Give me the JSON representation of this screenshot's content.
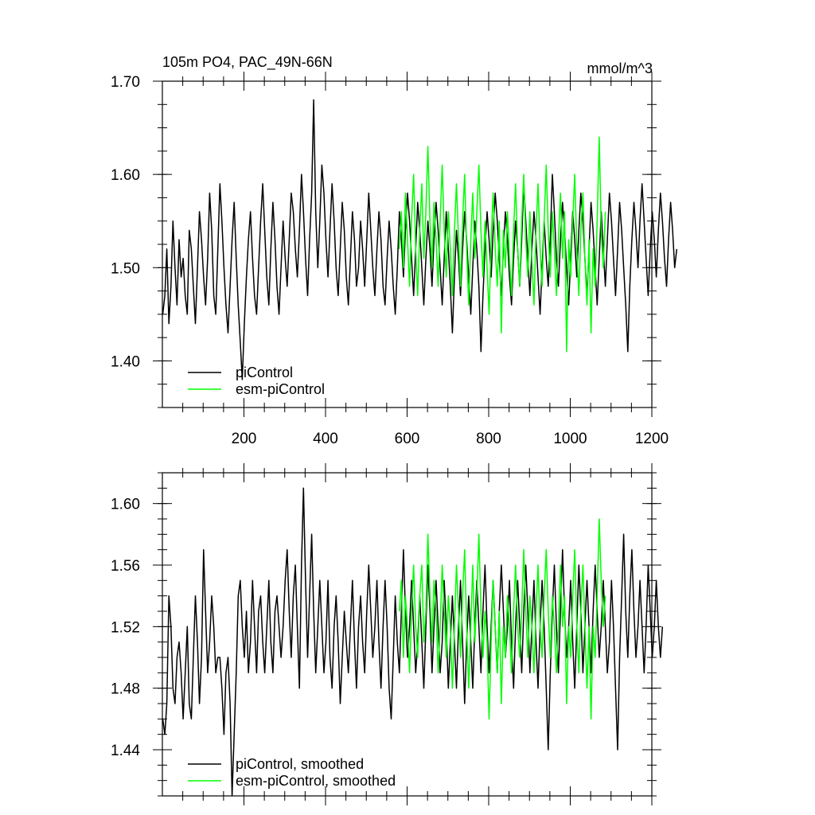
{
  "chart_data": [
    {
      "type": "line",
      "title": "105m PO4, PAC_49N-66N",
      "units": "mmol/m^3",
      "xlim": [
        0,
        1200
      ],
      "ylim": [
        1.35,
        1.7
      ],
      "x_ticks": [
        200,
        400,
        600,
        800,
        1000,
        1200
      ],
      "y_ticks": [
        "1.40",
        "1.50",
        "1.60",
        "1.70"
      ],
      "grid": false,
      "legend_position": "bottom-left",
      "series": [
        {
          "name": "piControl",
          "color": "#000000",
          "x_start": 1,
          "x_step": 5,
          "values": [
            1.45,
            1.47,
            1.52,
            1.44,
            1.48,
            1.55,
            1.5,
            1.46,
            1.53,
            1.49,
            1.51,
            1.47,
            1.45,
            1.54,
            1.52,
            1.48,
            1.44,
            1.5,
            1.56,
            1.53,
            1.49,
            1.46,
            1.51,
            1.58,
            1.54,
            1.47,
            1.45,
            1.52,
            1.59,
            1.55,
            1.5,
            1.46,
            1.43,
            1.48,
            1.53,
            1.57,
            1.51,
            1.46,
            1.42,
            1.38,
            1.44,
            1.49,
            1.53,
            1.56,
            1.51,
            1.47,
            1.45,
            1.5,
            1.55,
            1.59,
            1.54,
            1.49,
            1.46,
            1.52,
            1.57,
            1.53,
            1.48,
            1.45,
            1.5,
            1.55,
            1.51,
            1.48,
            1.53,
            1.58,
            1.56,
            1.52,
            1.49,
            1.54,
            1.6,
            1.56,
            1.51,
            1.47,
            1.53,
            1.58,
            1.68,
            1.56,
            1.5,
            1.55,
            1.61,
            1.58,
            1.53,
            1.49,
            1.54,
            1.59,
            1.55,
            1.5,
            1.47,
            1.52,
            1.57,
            1.54,
            1.49,
            1.46,
            1.51,
            1.56,
            1.53,
            1.48,
            1.5,
            1.55,
            1.52,
            1.48,
            1.53,
            1.58,
            1.54,
            1.5,
            1.47,
            1.52,
            1.56,
            1.53,
            1.48,
            1.46,
            1.51,
            1.55,
            1.52,
            1.48,
            1.45,
            1.5,
            1.56,
            1.53,
            1.49,
            1.54,
            1.58,
            1.55,
            1.51,
            1.47,
            1.52,
            1.57,
            1.54,
            1.5,
            1.46,
            1.51,
            1.55,
            1.52,
            1.48,
            1.53,
            1.57,
            1.54,
            1.5,
            1.46,
            1.51,
            1.56,
            1.52,
            1.48,
            1.43,
            1.49,
            1.54,
            1.51,
            1.47,
            1.52,
            1.56,
            1.53,
            1.49,
            1.45,
            1.5,
            1.55,
            1.52,
            1.48,
            1.41,
            1.47,
            1.52,
            1.56,
            1.53,
            1.49,
            1.54,
            1.58,
            1.55,
            1.51,
            1.47,
            1.52,
            1.56,
            1.53,
            1.49,
            1.46,
            1.51,
            1.55,
            1.52,
            1.48,
            1.53,
            1.59,
            1.55,
            1.51,
            1.47,
            1.52,
            1.56,
            1.53,
            1.49,
            1.45,
            1.5,
            1.55,
            1.51,
            1.48,
            1.53,
            1.6,
            1.56,
            1.51,
            1.48,
            1.53,
            1.57,
            1.54,
            1.5,
            1.46,
            1.51,
            1.56,
            1.53,
            1.49,
            1.54,
            1.58,
            1.55,
            1.51,
            1.47,
            1.52,
            1.57,
            1.54,
            1.5,
            1.46,
            1.51,
            1.56,
            1.52,
            1.48,
            1.53,
            1.58,
            1.55,
            1.51,
            1.47,
            1.52,
            1.57,
            1.54,
            1.5,
            1.46,
            1.41,
            1.48,
            1.53,
            1.57,
            1.54,
            1.5,
            1.55,
            1.59,
            1.55,
            1.51,
            1.47,
            1.52,
            1.56,
            1.53,
            1.49,
            1.54,
            1.58,
            1.55,
            1.51,
            1.48,
            1.53,
            1.57,
            1.54,
            1.5,
            1.52
          ]
        },
        {
          "name": "esm-piControl",
          "color": "#00ff00",
          "x_start": 581,
          "x_step": 5,
          "values": [
            1.52,
            1.56,
            1.5,
            1.58,
            1.53,
            1.48,
            1.55,
            1.6,
            1.52,
            1.47,
            1.54,
            1.59,
            1.51,
            1.56,
            1.63,
            1.55,
            1.5,
            1.57,
            1.53,
            1.48,
            1.55,
            1.61,
            1.54,
            1.49,
            1.56,
            1.52,
            1.47,
            1.54,
            1.59,
            1.53,
            1.48,
            1.55,
            1.6,
            1.52,
            1.46,
            1.53,
            1.58,
            1.51,
            1.56,
            1.61,
            1.54,
            1.49,
            1.55,
            1.5,
            1.45,
            1.53,
            1.58,
            1.52,
            1.48,
            1.55,
            1.43,
            1.54,
            1.5,
            1.56,
            1.51,
            1.47,
            1.54,
            1.59,
            1.52,
            1.48,
            1.55,
            1.6,
            1.53,
            1.49,
            1.56,
            1.51,
            1.46,
            1.54,
            1.59,
            1.52,
            1.48,
            1.55,
            1.61,
            1.54,
            1.49,
            1.56,
            1.52,
            1.47,
            1.53,
            1.58,
            1.51,
            1.56,
            1.41,
            1.53,
            1.49,
            1.55,
            1.6,
            1.52,
            1.47,
            1.54,
            1.58,
            1.51,
            1.46,
            1.53,
            1.43,
            1.52,
            1.48,
            1.55,
            1.64,
            1.54,
            1.5,
            1.56
          ]
        }
      ]
    },
    {
      "type": "line",
      "title": "",
      "xlim": [
        0,
        1200
      ],
      "ylim": [
        1.41,
        1.62
      ],
      "y_ticks": [
        "1.44",
        "1.48",
        "1.52",
        "1.56",
        "1.60"
      ],
      "grid": false,
      "legend_position": "bottom-left",
      "series": [
        {
          "name": "piControl, smoothed",
          "color": "#000000",
          "x_start": 1,
          "x_step": 5,
          "values": [
            1.46,
            1.45,
            1.47,
            1.54,
            1.52,
            1.48,
            1.47,
            1.5,
            1.51,
            1.49,
            1.46,
            1.49,
            1.52,
            1.47,
            1.46,
            1.5,
            1.54,
            1.51,
            1.47,
            1.5,
            1.57,
            1.53,
            1.49,
            1.51,
            1.54,
            1.52,
            1.49,
            1.5,
            1.5,
            1.48,
            1.45,
            1.49,
            1.5,
            1.47,
            1.41,
            1.45,
            1.49,
            1.54,
            1.55,
            1.52,
            1.5,
            1.53,
            1.49,
            1.51,
            1.55,
            1.52,
            1.49,
            1.53,
            1.54,
            1.51,
            1.49,
            1.52,
            1.55,
            1.51,
            1.49,
            1.53,
            1.54,
            1.52,
            1.5,
            1.52,
            1.55,
            1.57,
            1.53,
            1.5,
            1.54,
            1.56,
            1.52,
            1.48,
            1.56,
            1.61,
            1.55,
            1.5,
            1.54,
            1.58,
            1.53,
            1.49,
            1.52,
            1.55,
            1.52,
            1.49,
            1.51,
            1.55,
            1.5,
            1.48,
            1.52,
            1.54,
            1.51,
            1.47,
            1.5,
            1.53,
            1.51,
            1.49,
            1.52,
            1.55,
            1.51,
            1.48,
            1.52,
            1.54,
            1.51,
            1.49,
            1.53,
            1.56,
            1.53,
            1.5,
            1.52,
            1.55,
            1.51,
            1.48,
            1.52,
            1.55,
            1.52,
            1.48,
            1.46,
            1.5,
            1.54,
            1.51,
            1.49,
            1.53,
            1.57,
            1.53,
            1.5,
            1.52,
            1.55,
            1.52,
            1.49,
            1.51,
            1.54,
            1.51,
            1.48,
            1.52,
            1.56,
            1.53,
            1.49,
            1.52,
            1.55,
            1.52,
            1.49,
            1.51,
            1.55,
            1.52,
            1.48,
            1.51,
            1.54,
            1.51,
            1.48,
            1.52,
            1.55,
            1.51,
            1.47,
            1.51,
            1.54,
            1.51,
            1.48,
            1.52,
            1.55,
            1.52,
            1.49,
            1.53,
            1.56,
            1.52,
            1.49,
            1.52,
            1.55,
            1.52,
            1.49,
            1.53,
            1.56,
            1.53,
            1.5,
            1.52,
            1.55,
            1.51,
            1.48,
            1.52,
            1.55,
            1.52,
            1.49,
            1.53,
            1.56,
            1.53,
            1.49,
            1.52,
            1.55,
            1.51,
            1.48,
            1.52,
            1.55,
            1.52,
            1.48,
            1.44,
            1.49,
            1.53,
            1.56,
            1.52,
            1.49,
            1.53,
            1.57,
            1.53,
            1.5,
            1.52,
            1.55,
            1.51,
            1.48,
            1.52,
            1.56,
            1.53,
            1.49,
            1.52,
            1.55,
            1.52,
            1.49,
            1.53,
            1.56,
            1.53,
            1.5,
            1.52,
            1.55,
            1.52,
            1.49,
            1.51,
            1.55,
            1.52,
            1.48,
            1.44,
            1.5,
            1.54,
            1.58,
            1.53,
            1.5,
            1.54,
            1.57,
            1.53,
            1.5,
            1.52,
            1.55,
            1.52,
            1.49,
            1.52,
            1.56,
            1.53,
            1.5,
            1.52,
            1.55,
            1.52,
            1.5,
            1.52
          ]
        },
        {
          "name": "esm-piControl, smoothed",
          "color": "#00ff00",
          "x_start": 581,
          "x_step": 5,
          "values": [
            1.53,
            1.55,
            1.5,
            1.54,
            1.52,
            1.49,
            1.53,
            1.56,
            1.52,
            1.5,
            1.54,
            1.56,
            1.51,
            1.53,
            1.58,
            1.54,
            1.51,
            1.55,
            1.53,
            1.49,
            1.52,
            1.56,
            1.53,
            1.5,
            1.54,
            1.52,
            1.48,
            1.52,
            1.56,
            1.53,
            1.5,
            1.54,
            1.57,
            1.52,
            1.48,
            1.52,
            1.56,
            1.51,
            1.54,
            1.58,
            1.53,
            1.5,
            1.53,
            1.51,
            1.46,
            1.51,
            1.55,
            1.52,
            1.49,
            1.53,
            1.47,
            1.52,
            1.5,
            1.54,
            1.52,
            1.49,
            1.53,
            1.56,
            1.52,
            1.5,
            1.53,
            1.57,
            1.53,
            1.5,
            1.54,
            1.52,
            1.49,
            1.53,
            1.56,
            1.52,
            1.5,
            1.54,
            1.57,
            1.53,
            1.5,
            1.54,
            1.52,
            1.49,
            1.52,
            1.56,
            1.52,
            1.54,
            1.47,
            1.52,
            1.5,
            1.54,
            1.57,
            1.52,
            1.49,
            1.53,
            1.56,
            1.52,
            1.48,
            1.52,
            1.46,
            1.52,
            1.5,
            1.54,
            1.59,
            1.55,
            1.52,
            1.54
          ]
        }
      ]
    }
  ]
}
